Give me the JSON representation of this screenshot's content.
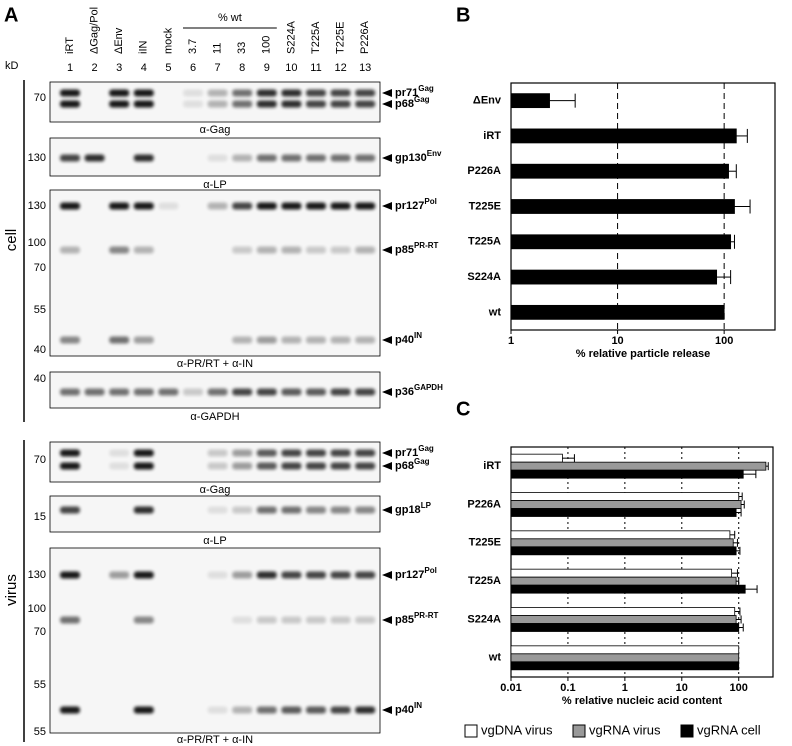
{
  "panel_a": {
    "label": "A",
    "kd_label": "kD",
    "lanes": [
      {
        "number": 1,
        "name": "iRT"
      },
      {
        "number": 2,
        "name": "ΔGag/Pol"
      },
      {
        "number": 3,
        "name": "ΔEnv"
      },
      {
        "number": 4,
        "name": "iIN"
      },
      {
        "number": 5,
        "name": "mock"
      },
      {
        "number": 6,
        "name": "3.7"
      },
      {
        "number": 7,
        "name": "11"
      },
      {
        "number": 8,
        "name": "33"
      },
      {
        "number": 9,
        "name": "100"
      },
      {
        "number": 10,
        "name": "S224A"
      },
      {
        "number": 11,
        "name": "T225A"
      },
      {
        "number": 12,
        "name": "T225E"
      },
      {
        "number": 13,
        "name": "P226A"
      }
    ],
    "wt_group_label": "% wt",
    "sections": [
      "cell",
      "virus"
    ],
    "blots": [
      {
        "markers": [
          70
        ],
        "bands": [
          {
            "name": "pr71",
            "sup": "Gag"
          },
          {
            "name": "p68",
            "sup": "Gag"
          }
        ],
        "antibody": "α-Gag"
      },
      {
        "markers": [
          130
        ],
        "bands": [
          {
            "name": "gp130",
            "sup": "Env"
          }
        ],
        "antibody": "α-LP"
      },
      {
        "markers": [
          130,
          100,
          70,
          55,
          40
        ],
        "bands": [
          {
            "name": "pr127",
            "sup": "Pol"
          },
          {
            "name": "p85",
            "sup": "PR-RT"
          },
          {
            "name": "p40",
            "sup": "IN"
          }
        ],
        "antibody": "α-PR/RT + α-IN"
      },
      {
        "markers": [
          40
        ],
        "bands": [
          {
            "name": "p36",
            "sup": "GAPDH"
          }
        ],
        "antibody": "α-GAPDH"
      },
      {
        "markers": [
          70
        ],
        "bands": [
          {
            "name": "pr71",
            "sup": "Gag"
          },
          {
            "name": "p68",
            "sup": "Gag"
          }
        ],
        "antibody": "α-Gag"
      },
      {
        "markers": [
          15
        ],
        "bands": [
          {
            "name": "gp18",
            "sup": "LP"
          }
        ],
        "antibody": "α-LP"
      },
      {
        "markers": [
          130,
          100,
          70,
          55,
          55
        ],
        "bands": [
          {
            "name": "pr127",
            "sup": "Pol"
          },
          {
            "name": "p85",
            "sup": "PR-RT"
          },
          {
            "name": "p40",
            "sup": "IN"
          }
        ],
        "antibody": "α-PR/RT + α-IN"
      }
    ]
  },
  "chart_data": [
    {
      "type": "hbar",
      "panel": "B",
      "x_label": "% relative particle release",
      "categories": [
        "ΔEnv",
        "iRT",
        "P226A",
        "T225E",
        "T225A",
        "S224A",
        "wt"
      ],
      "series": [
        {
          "color": "#000000",
          "values": [
            2.3,
            130,
            110,
            125,
            115,
            85,
            100
          ],
          "errors": [
            1.7,
            35,
            20,
            50,
            10,
            30,
            null
          ]
        }
      ],
      "xlim": [
        1,
        300
      ],
      "xticks": [
        1,
        10,
        100
      ],
      "log_x": true,
      "grid": true,
      "grid_style": "dashed"
    },
    {
      "type": "hbar",
      "panel": "C",
      "x_label": "% relative nucleic acid content",
      "categories": [
        "iRT",
        "P226A",
        "T225E",
        "T225A",
        "S224A",
        "wt"
      ],
      "series": [
        {
          "name": "vgDNA virus",
          "color": "#ffffff",
          "values": [
            0.08,
            100,
            70,
            75,
            85,
            100
          ],
          "errors": [
            0.05,
            15,
            15,
            20,
            20,
            null
          ]
        },
        {
          "name": "vgRNA virus",
          "color": "#999999",
          "values": [
            300,
            110,
            80,
            90,
            90,
            100
          ],
          "errors": [
            30,
            15,
            15,
            10,
            20,
            null
          ]
        },
        {
          "name": "vgRNA cell",
          "color": "#000000",
          "values": [
            120,
            90,
            90,
            130,
            100,
            100
          ],
          "errors": [
            80,
            20,
            15,
            80,
            20,
            null
          ]
        }
      ],
      "xlim": [
        0.01,
        400
      ],
      "xticks": [
        0.01,
        0.1,
        1,
        10,
        100
      ],
      "log_x": true,
      "grid": true,
      "grid_style": "dotted",
      "legend": "bottom"
    }
  ]
}
